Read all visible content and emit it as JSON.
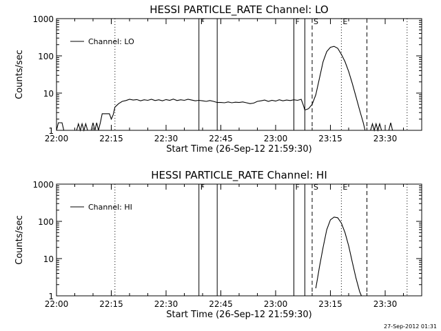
{
  "footer": {
    "timestamp": "27-Sep-2012 01:31"
  },
  "colors": {
    "background": "#ffffff",
    "ink": "#000000"
  },
  "chart_data": [
    {
      "type": "line",
      "title": "HESSI PARTICLE_RATE Channel: LO",
      "xlabel": "Start Time (26-Sep-12 21:59:30)",
      "ylabel": "Counts/sec",
      "y_scale": "log",
      "xlim": [
        "22:00",
        "23:40"
      ],
      "ylim": [
        1,
        1000
      ],
      "x_ticks": [
        "22:00",
        "22:15",
        "22:30",
        "22:45",
        "23:00",
        "23:15",
        "23:30"
      ],
      "y_ticks": [
        "1",
        "10",
        "100",
        "1000"
      ],
      "legend": {
        "position": "top-left",
        "entries": [
          "Channel: LO"
        ]
      },
      "markers": [
        {
          "time": "22:16",
          "style": "dotted",
          "label": ""
        },
        {
          "time": "22:39",
          "style": "solid",
          "label": "F"
        },
        {
          "time": "22:44",
          "style": "solid",
          "label": ""
        },
        {
          "time": "23:05",
          "style": "solid",
          "label": "F"
        },
        {
          "time": "23:08",
          "style": "solid",
          "label": ""
        },
        {
          "time": "23:10",
          "style": "dashed",
          "label": "S"
        },
        {
          "time": "23:18",
          "style": "dotted",
          "label": "E"
        },
        {
          "time": "23:25",
          "style": "dashed",
          "label": ""
        },
        {
          "time": "23:36",
          "style": "dotted",
          "label": ""
        }
      ],
      "series": [
        {
          "name": "Channel: LO",
          "points": [
            [
              "22:00",
              1
            ],
            [
              "22:00.5",
              1.6
            ],
            [
              "22:01.5",
              1.6
            ],
            [
              "22:02",
              1
            ],
            [
              "22:05.5",
              1
            ],
            [
              "22:06",
              1.5
            ],
            [
              "22:06.5",
              1
            ],
            [
              "22:07",
              1.5
            ],
            [
              "22:07.5",
              1
            ],
            [
              "22:08",
              1.5
            ],
            [
              "22:08.5",
              1
            ],
            [
              "22:09.5",
              1
            ],
            [
              "22:10",
              1.6
            ],
            [
              "22:10.5",
              1
            ],
            [
              "22:11",
              1.6
            ],
            [
              "22:11.5",
              1
            ],
            [
              "22:12",
              1.6
            ],
            [
              "22:12.5",
              2.8
            ],
            [
              "22:14.5",
              2.8
            ],
            [
              "22:15",
              2.0
            ],
            [
              "22:15.5",
              2.6
            ],
            [
              "22:16",
              4.2
            ],
            [
              "22:17",
              5.2
            ],
            [
              "22:18",
              6.0
            ],
            [
              "22:19",
              6.3
            ],
            [
              "22:20",
              6.8
            ],
            [
              "22:21",
              6.5
            ],
            [
              "22:22",
              6.7
            ],
            [
              "22:23",
              6.2
            ],
            [
              "22:24",
              6.6
            ],
            [
              "22:25",
              6.4
            ],
            [
              "22:26",
              6.8
            ],
            [
              "22:27",
              6.3
            ],
            [
              "22:28",
              6.6
            ],
            [
              "22:29",
              6.2
            ],
            [
              "22:30",
              6.7
            ],
            [
              "22:31",
              6.4
            ],
            [
              "22:32",
              6.9
            ],
            [
              "22:33",
              6.3
            ],
            [
              "22:34",
              6.6
            ],
            [
              "22:35",
              6.4
            ],
            [
              "22:36",
              6.8
            ],
            [
              "22:37",
              6.5
            ],
            [
              "22:38",
              6.2
            ],
            [
              "22:39",
              6.4
            ],
            [
              "22:40",
              6.2
            ],
            [
              "22:41",
              6.0
            ],
            [
              "22:42",
              6.3
            ],
            [
              "22:43",
              6.0
            ],
            [
              "22:44",
              5.6
            ],
            [
              "22:45",
              5.6
            ],
            [
              "22:46",
              5.5
            ],
            [
              "22:47",
              5.8
            ],
            [
              "22:48",
              5.5
            ],
            [
              "22:49",
              5.7
            ],
            [
              "22:50",
              5.6
            ],
            [
              "22:51",
              5.8
            ],
            [
              "22:52",
              5.5
            ],
            [
              "22:53",
              5.2
            ],
            [
              "22:54",
              5.4
            ],
            [
              "22:55",
              6.0
            ],
            [
              "22:56",
              6.2
            ],
            [
              "22:57",
              6.5
            ],
            [
              "22:58",
              6.0
            ],
            [
              "22:59",
              6.4
            ],
            [
              "23:00",
              6.1
            ],
            [
              "23:01",
              6.6
            ],
            [
              "23:02",
              6.2
            ],
            [
              "23:03",
              6.5
            ],
            [
              "23:04",
              6.3
            ],
            [
              "23:05",
              6.6
            ],
            [
              "23:06",
              6.4
            ],
            [
              "23:07",
              6.8
            ],
            [
              "23:07.5",
              5.0
            ],
            [
              "23:08",
              3.5
            ],
            [
              "23:09",
              3.8
            ],
            [
              "23:10",
              5.0
            ],
            [
              "23:11",
              9.0
            ],
            [
              "23:12",
              25
            ],
            [
              "23:13",
              70
            ],
            [
              "23:14",
              130
            ],
            [
              "23:15",
              170
            ],
            [
              "23:16",
              180
            ],
            [
              "23:17",
              160
            ],
            [
              "23:18",
              110
            ],
            [
              "23:19",
              70
            ],
            [
              "23:20",
              38
            ],
            [
              "23:21",
              18
            ],
            [
              "23:22",
              8
            ],
            [
              "23:23",
              3.5
            ],
            [
              "23:24",
              1.6
            ],
            [
              "23:24.5",
              1
            ],
            [
              "23:26",
              1
            ],
            [
              "23:26.5",
              1.5
            ],
            [
              "23:27",
              1
            ],
            [
              "23:27.5",
              1.5
            ],
            [
              "23:28",
              1
            ],
            [
              "23:28.5",
              1.5
            ],
            [
              "23:29",
              1
            ],
            [
              "23:31",
              1
            ],
            [
              "23:31.5",
              1.6
            ],
            [
              "23:32",
              1
            ]
          ]
        }
      ]
    },
    {
      "type": "line",
      "title": "HESSI PARTICLE_RATE Channel: HI",
      "xlabel": "Start Time (26-Sep-12 21:59:30)",
      "ylabel": "Counts/sec",
      "y_scale": "log",
      "xlim": [
        "22:00",
        "23:40"
      ],
      "ylim": [
        1,
        1000
      ],
      "x_ticks": [
        "22:00",
        "22:15",
        "22:30",
        "22:45",
        "23:00",
        "23:15",
        "23:30"
      ],
      "y_ticks": [
        "1",
        "10",
        "100",
        "1000"
      ],
      "legend": {
        "position": "top-left",
        "entries": [
          "Channel: HI"
        ]
      },
      "markers": [
        {
          "time": "22:16",
          "style": "dotted",
          "label": ""
        },
        {
          "time": "22:39",
          "style": "solid",
          "label": "F"
        },
        {
          "time": "22:44",
          "style": "solid",
          "label": ""
        },
        {
          "time": "23:05",
          "style": "solid",
          "label": "F"
        },
        {
          "time": "23:08",
          "style": "solid",
          "label": ""
        },
        {
          "time": "23:10",
          "style": "dashed",
          "label": "S"
        },
        {
          "time": "23:18",
          "style": "dotted",
          "label": "E"
        },
        {
          "time": "23:25",
          "style": "dashed",
          "label": ""
        },
        {
          "time": "23:36",
          "style": "dotted",
          "label": ""
        }
      ],
      "series": [
        {
          "name": "Channel: HI",
          "points": [
            [
              "23:11",
              1.6
            ],
            [
              "23:11.5",
              3
            ],
            [
              "23:12",
              6
            ],
            [
              "23:13",
              20
            ],
            [
              "23:14",
              60
            ],
            [
              "23:15",
              110
            ],
            [
              "23:16",
              130
            ],
            [
              "23:17",
              125
            ],
            [
              "23:18",
              90
            ],
            [
              "23:19",
              50
            ],
            [
              "23:20",
              22
            ],
            [
              "23:21",
              8
            ],
            [
              "23:22",
              3
            ],
            [
              "23:23",
              1.3
            ],
            [
              "23:23.5",
              1
            ]
          ]
        }
      ]
    }
  ]
}
